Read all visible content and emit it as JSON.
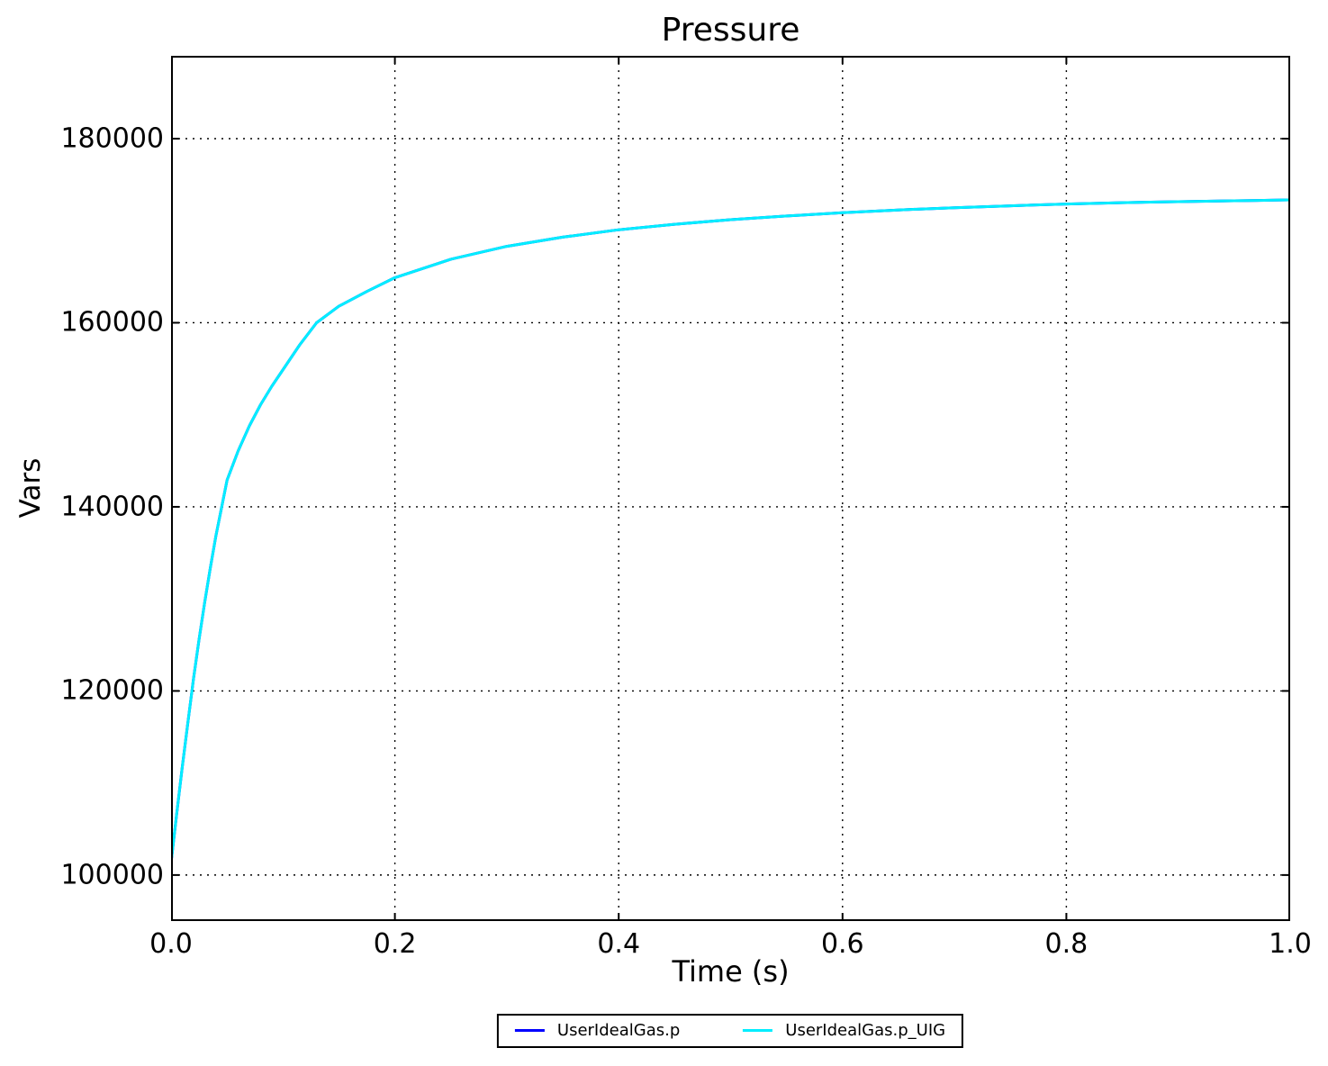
{
  "figure": {
    "background": "#ffffff",
    "text_color": "#000000"
  },
  "chart_data": {
    "type": "line",
    "title": "Pressure",
    "xlabel": "Time (s)",
    "ylabel": "Vars",
    "xlim": [
      0.0,
      1.0
    ],
    "ylim": [
      95000,
      189000
    ],
    "xticks": [
      0.0,
      0.2,
      0.4,
      0.6,
      0.8,
      1.0
    ],
    "xtick_labels": [
      "0.0",
      "0.2",
      "0.4",
      "0.6",
      "0.8",
      "1.0"
    ],
    "yticks": [
      100000,
      120000,
      140000,
      160000,
      180000
    ],
    "ytick_labels": [
      "100000",
      "120000",
      "140000",
      "160000",
      "180000"
    ],
    "grid": "dotted",
    "frame_color": "#000000",
    "legend": {
      "position": "bottom-center",
      "border_color": "#000000",
      "items": [
        {
          "label": "UserIdealGas.p",
          "color": "#0000ff"
        },
        {
          "label": "UserIdealGas.p_UIG",
          "color": "#00eeff"
        }
      ]
    },
    "x": [
      0,
      0.005,
      0.01,
      0.015,
      0.02,
      0.025,
      0.03,
      0.035,
      0.04,
      0.05,
      0.06,
      0.07,
      0.08,
      0.09,
      0.1,
      0.115,
      0.13,
      0.15,
      0.175,
      0.2,
      0.25,
      0.3,
      0.35,
      0.4,
      0.45,
      0.5,
      0.55,
      0.6,
      0.65,
      0.7,
      0.75,
      0.8,
      0.85,
      0.9,
      0.95,
      1.0
    ],
    "series": [
      {
        "name": "UserIdealGas.p",
        "color": "#0000ff",
        "values": [
          101325,
          106600,
          111700,
          116500,
          121300,
          125600,
          129600,
          133300,
          136800,
          142900,
          146100,
          148800,
          151100,
          153100,
          154900,
          157600,
          160000,
          161800,
          163400,
          164900,
          166900,
          168300,
          169300,
          170100,
          170700,
          171200,
          171600,
          171950,
          172250,
          172500,
          172700,
          172900,
          173050,
          173150,
          173250,
          173350
        ]
      },
      {
        "name": "UserIdealGas.p_UIG",
        "color": "#00eeff",
        "values": [
          101325,
          106600,
          111700,
          116500,
          121300,
          125600,
          129600,
          133300,
          136800,
          142900,
          146100,
          148800,
          151100,
          153100,
          154900,
          157600,
          160000,
          161800,
          163400,
          164900,
          166900,
          168300,
          169300,
          170100,
          170700,
          171200,
          171600,
          171950,
          172250,
          172500,
          172700,
          172900,
          173050,
          173150,
          173250,
          173350
        ]
      }
    ]
  }
}
